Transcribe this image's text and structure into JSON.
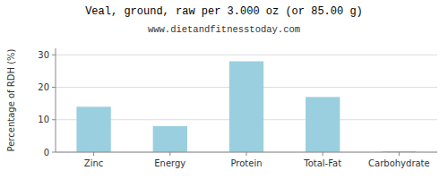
{
  "chart_data": {
    "type": "bar",
    "title": "Veal, ground, raw per 3.000 oz (or 85.00 g)",
    "subtitle": "www.dietandfitnesstoday.com",
    "categories": [
      "Zinc",
      "Energy",
      "Protein",
      "Total-Fat",
      "Carbohydrate"
    ],
    "values": [
      14.0,
      8.0,
      28.0,
      17.0,
      0.3
    ],
    "color": "#9ACFDF",
    "ylabel": "Percentage of RDH (%)",
    "ylim": [
      0,
      32
    ],
    "yticks": [
      0,
      10,
      20,
      30
    ],
    "grid": true
  }
}
